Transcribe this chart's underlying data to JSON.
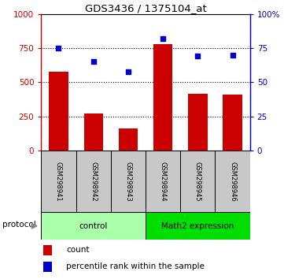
{
  "title": "GDS3436 / 1375104_at",
  "samples": [
    "GSM298941",
    "GSM298942",
    "GSM298943",
    "GSM298944",
    "GSM298945",
    "GSM298946"
  ],
  "counts": [
    580,
    270,
    160,
    780,
    415,
    410
  ],
  "percentile_ranks": [
    75,
    65,
    58,
    82,
    69,
    70
  ],
  "left_axis_color": "#CC0000",
  "right_axis_color": "#0000CC",
  "bar_color": "#CC0000",
  "dot_color": "#0000CC",
  "ylim_left": [
    0,
    1000
  ],
  "ylim_right": [
    0,
    100
  ],
  "yticks_left": [
    0,
    250,
    500,
    750,
    1000
  ],
  "ytick_labels_left": [
    "0",
    "250",
    "500",
    "750",
    "1000"
  ],
  "yticks_right": [
    0,
    25,
    50,
    75,
    100
  ],
  "ytick_labels_right": [
    "0",
    "25",
    "50",
    "75",
    "100%"
  ],
  "grid_values": [
    250,
    500,
    750
  ],
  "protocol_label": "protocol",
  "legend_count_label": "count",
  "legend_pct_label": "percentile rank within the sample",
  "control_color_light": "#AAFFAA",
  "control_color_dark": "#55EE55",
  "math2_color": "#00DD00",
  "grey_color": "#C8C8C8"
}
